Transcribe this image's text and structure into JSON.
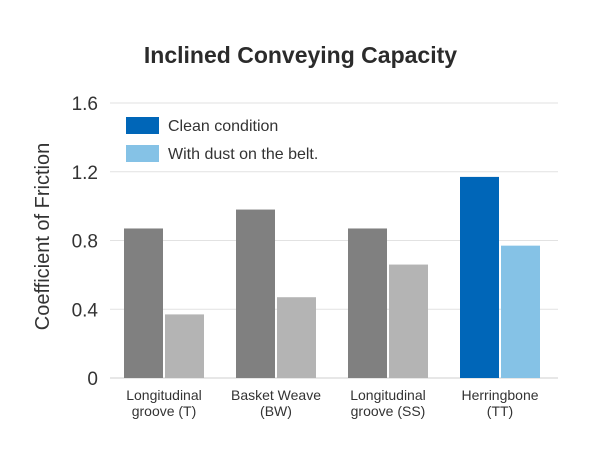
{
  "chart_data": {
    "type": "bar",
    "title": "Inclined Conveying Capacity",
    "xlabel": "",
    "ylabel": "Coefficient of Friction",
    "ylim": [
      0,
      1.6
    ],
    "yticks": [
      "0",
      "0.4",
      "0.8",
      "1.2",
      "1.6"
    ],
    "grid": true,
    "legend_position": "top-left",
    "categories": [
      [
        "Longitudinal",
        "groove (T)"
      ],
      [
        "Basket Weave",
        "(BW)"
      ],
      [
        "Longitudinal",
        "groove (SS)"
      ],
      [
        "Herringbone",
        "(TT)"
      ]
    ],
    "series": [
      {
        "name": "Clean condition",
        "values": [
          0.87,
          0.98,
          0.87,
          1.17
        ],
        "colors": [
          "#808080",
          "#808080",
          "#808080",
          "#0066b8"
        ]
      },
      {
        "name": "With dust on the belt.",
        "values": [
          0.37,
          0.47,
          0.66,
          0.77
        ],
        "colors": [
          "#b4b4b4",
          "#b4b4b4",
          "#b4b4b4",
          "#85c2e6"
        ]
      }
    ],
    "legend_colors": [
      "#0066b8",
      "#85c2e6"
    ]
  }
}
